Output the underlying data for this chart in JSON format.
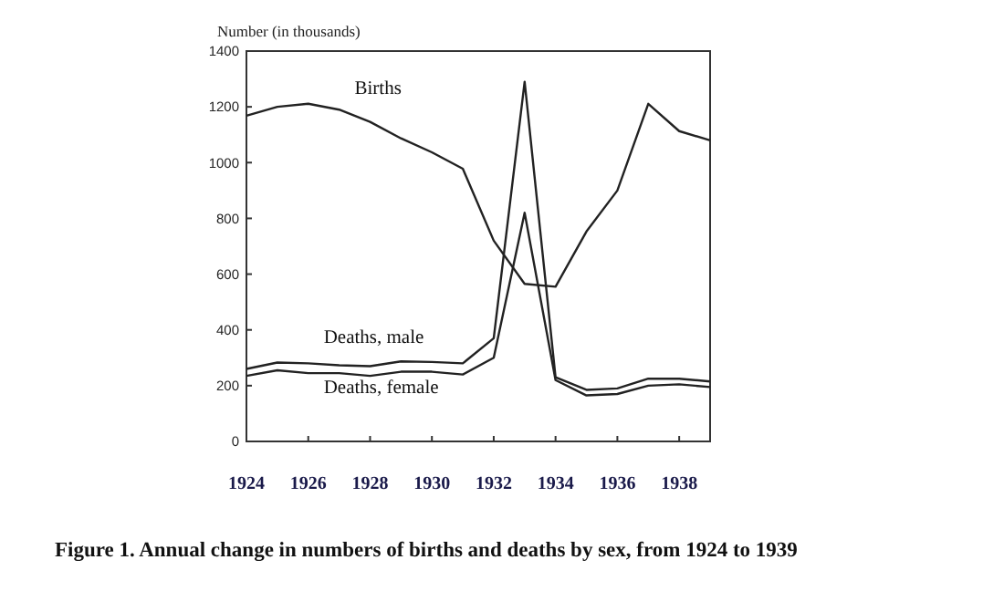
{
  "chart_data": {
    "type": "line",
    "ylabel": "Number (in thousands)",
    "annotations": [
      "Figure 1. Annual change in numbers of births and deaths by sex, from 1924 to 1939"
    ],
    "x": [
      1924,
      1925,
      1926,
      1927,
      1928,
      1929,
      1930,
      1931,
      1932,
      1933,
      1934,
      1935,
      1936,
      1937,
      1938,
      1939
    ],
    "series": [
      {
        "name": "Births",
        "color": "#222222",
        "values": [
          1168,
          1200,
          1211,
          1190,
          1146,
          1087,
          1037,
          978,
          720,
          565,
          555,
          753,
          900,
          1211,
          1113,
          1080
        ]
      },
      {
        "name": "Deaths, male",
        "color": "#222222",
        "values": [
          260,
          283,
          280,
          273,
          270,
          287,
          285,
          280,
          370,
          1290,
          230,
          185,
          190,
          225,
          225,
          215
        ]
      },
      {
        "name": "Deaths, female",
        "color": "#222222",
        "values": [
          235,
          255,
          245,
          245,
          235,
          250,
          250,
          240,
          300,
          820,
          220,
          165,
          170,
          200,
          205,
          195
        ]
      }
    ],
    "xlim": [
      1924,
      1939
    ],
    "xticks": [
      1924,
      1926,
      1928,
      1930,
      1932,
      1934,
      1936,
      1938
    ],
    "ylim": [
      0,
      1400
    ],
    "yticks": [
      0,
      200,
      400,
      600,
      800,
      1000,
      1200,
      1400
    ],
    "grid": false,
    "legend": false,
    "marker": "none",
    "line_style": "solid"
  }
}
